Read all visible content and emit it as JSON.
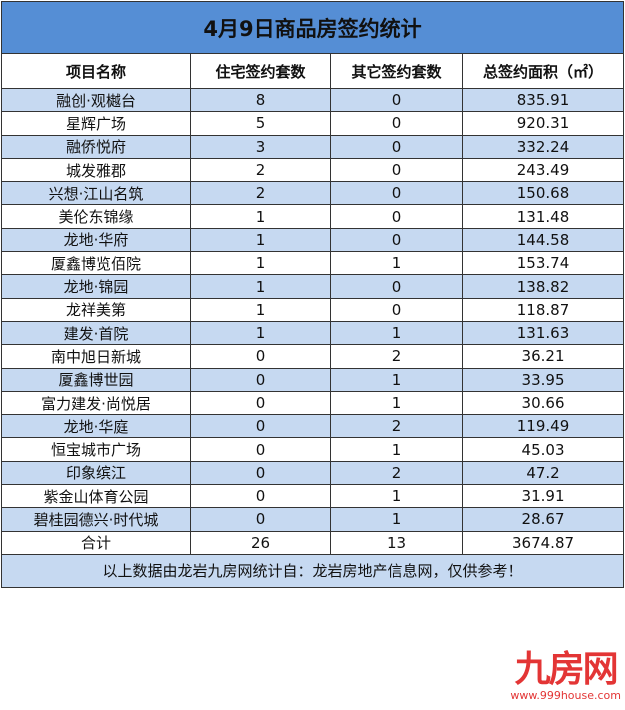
{
  "title": "4月9日商品房签约统计",
  "headers": [
    "项目名称",
    "住宅签约套数",
    "其它签约套数",
    "总签约面积（㎡）"
  ],
  "rows": [
    [
      "融创·观樾台",
      "8",
      "0",
      "835.91"
    ],
    [
      "星辉广场",
      "5",
      "0",
      "920.31"
    ],
    [
      "融侨悦府",
      "3",
      "0",
      "332.24"
    ],
    [
      "城发雅郡",
      "2",
      "0",
      "243.49"
    ],
    [
      "兴想·江山名筑",
      "2",
      "0",
      "150.68"
    ],
    [
      "美伦东锦缘",
      "1",
      "0",
      "131.48"
    ],
    [
      "龙地·华府",
      "1",
      "0",
      "144.58"
    ],
    [
      "厦鑫博览佰院",
      "1",
      "1",
      "153.74"
    ],
    [
      "龙地·锦园",
      "1",
      "0",
      "138.82"
    ],
    [
      "龙祥美第",
      "1",
      "0",
      "118.87"
    ],
    [
      "建发·首院",
      "1",
      "1",
      "131.63"
    ],
    [
      "南中旭日新城",
      "0",
      "2",
      "36.21"
    ],
    [
      "厦鑫博世园",
      "0",
      "1",
      "33.95"
    ],
    [
      "富力建发·尚悦居",
      "0",
      "1",
      "30.66"
    ],
    [
      "龙地·华庭",
      "0",
      "2",
      "119.49"
    ],
    [
      "恒宝城市广场",
      "0",
      "1",
      "45.03"
    ],
    [
      "印象缤江",
      "0",
      "2",
      "47.2"
    ],
    [
      "紫金山体育公园",
      "0",
      "1",
      "31.91"
    ],
    [
      "碧桂园德兴·时代城",
      "0",
      "1",
      "28.67"
    ]
  ],
  "total": [
    "合计",
    "26",
    "13",
    "3674.87"
  ],
  "footer": "以上数据由龙岩九房网统计自：龙岩房地产信息网，仅供参考！",
  "watermark": {
    "logo": "九房网",
    "url": "www.999house.com"
  },
  "colors": {
    "title_bg": "#558ed5",
    "row_alt": "#c6d9f1",
    "watermark": "#e02020"
  }
}
